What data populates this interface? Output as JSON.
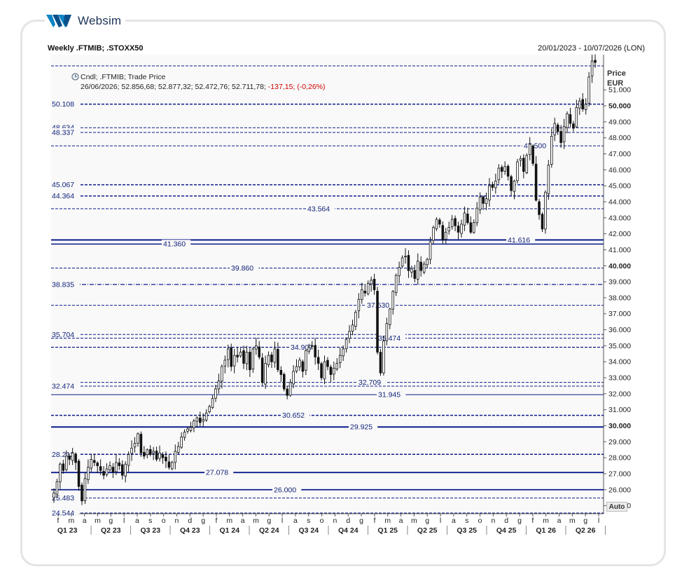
{
  "app": {
    "brand": "Websim"
  },
  "chart_data": {
    "type": "candlestick",
    "title": "Weekly .FTMIB; .STOXX50",
    "date_range": "20/01/2023 - 10/07/2026 (LON)",
    "legend": {
      "series": "Cndl; .FTMIB; Trade Price",
      "ohlc_text": "26/06/2026; 52.856,68; 52.877,32; 52.472,76; 52.711,78;",
      "change_text": "-137,15; (-0,26%)"
    },
    "y_axis": {
      "title": "Price",
      "unit": "EUR",
      "ylim": [
        24500,
        53200
      ],
      "ticks": [
        {
          "v": 25000,
          "label": "25.000",
          "bold": false
        },
        {
          "v": 26000,
          "label": "26.000",
          "bold": false
        },
        {
          "v": 27000,
          "label": "27.000",
          "bold": false
        },
        {
          "v": 28000,
          "label": "28.000",
          "bold": false
        },
        {
          "v": 29000,
          "label": "29.000",
          "bold": false
        },
        {
          "v": 30000,
          "label": "30.000",
          "bold": true
        },
        {
          "v": 31000,
          "label": "31.000",
          "bold": false
        },
        {
          "v": 32000,
          "label": "32.000",
          "bold": false
        },
        {
          "v": 33000,
          "label": "33.000",
          "bold": false
        },
        {
          "v": 34000,
          "label": "34.000",
          "bold": false
        },
        {
          "v": 35000,
          "label": "35.000",
          "bold": false
        },
        {
          "v": 36000,
          "label": "36.000",
          "bold": false
        },
        {
          "v": 37000,
          "label": "37.000",
          "bold": false
        },
        {
          "v": 38000,
          "label": "38.000",
          "bold": false
        },
        {
          "v": 39000,
          "label": "39.000",
          "bold": false
        },
        {
          "v": 40000,
          "label": "40.000",
          "bold": true
        },
        {
          "v": 41000,
          "label": "41.000",
          "bold": false
        },
        {
          "v": 42000,
          "label": "42.000",
          "bold": false
        },
        {
          "v": 43000,
          "label": "43.000",
          "bold": false
        },
        {
          "v": 44000,
          "label": "44.000",
          "bold": false
        },
        {
          "v": 45000,
          "label": "45.000",
          "bold": false
        },
        {
          "v": 46000,
          "label": "46.000",
          "bold": false
        },
        {
          "v": 47000,
          "label": "47.000",
          "bold": false
        },
        {
          "v": 48000,
          "label": "48.000",
          "bold": false
        },
        {
          "v": 49000,
          "label": "49.000",
          "bold": false
        },
        {
          "v": 50000,
          "label": "50.000",
          "bold": true
        },
        {
          "v": 51000,
          "label": "51.000",
          "bold": false
        }
      ],
      "auto_label": "Auto"
    },
    "x_axis": {
      "month_ticks": [
        "f",
        "m",
        "a",
        "m",
        "g",
        "l",
        "a",
        "s",
        "o",
        "n",
        "d",
        "g",
        "f",
        "m",
        "a",
        "m",
        "g",
        "l",
        "a",
        "s",
        "o",
        "n",
        "d",
        "g",
        "f",
        "m",
        "a",
        "m",
        "g",
        "l",
        "a",
        "s",
        "o",
        "n",
        "d",
        "g",
        "f",
        "m",
        "a",
        "m",
        "g",
        "l"
      ],
      "quarters": [
        "Q1 23",
        "Q2 23",
        "Q3 23",
        "Q4 23",
        "Q1 24",
        "Q2 24",
        "Q3 24",
        "Q4 24",
        "Q1 25",
        "Q2 25",
        "Q3 25",
        "Q4 25",
        "Q1 26",
        "Q2 26"
      ]
    },
    "levels": [
      {
        "v": 52500,
        "label": "",
        "style": "dash",
        "weight": 1
      },
      {
        "v": 50108,
        "label": "50.108",
        "style": "dash",
        "weight": 1.5,
        "labelpos": "left"
      },
      {
        "v": 48634,
        "label": "48.634",
        "style": "dash",
        "weight": 1,
        "labelpos": "left"
      },
      {
        "v": 48337,
        "label": "48.337",
        "style": "dash",
        "weight": 1,
        "labelpos": "left"
      },
      {
        "v": 47500,
        "label": "47.500",
        "style": "dash",
        "weight": 1,
        "labelpos": "right"
      },
      {
        "v": 45067,
        "label": "45.067",
        "style": "dash",
        "weight": 1.5,
        "labelpos": "left"
      },
      {
        "v": 44364,
        "label": "44.364",
        "style": "dash",
        "weight": 1.5,
        "labelpos": "left"
      },
      {
        "v": 43564,
        "label": "43.564",
        "style": "dash",
        "weight": 1,
        "labelpos": "mid"
      },
      {
        "v": 41616,
        "label": "41.616",
        "style": "solid",
        "weight": 2,
        "labelpos": "right"
      },
      {
        "v": 41360,
        "label": "41.360",
        "style": "solid",
        "weight": 1.5,
        "labelpos": "mid"
      },
      {
        "v": 39860,
        "label": "39.860",
        "style": "dash",
        "weight": 1,
        "labelpos": "mid"
      },
      {
        "v": 38835,
        "label": "38.835",
        "style": "dashdot",
        "weight": 1.2,
        "labelpos": "left"
      },
      {
        "v": 37530,
        "label": "37.530",
        "style": "dash",
        "weight": 1,
        "labelpos": "mid"
      },
      {
        "v": 35704,
        "label": "35.704",
        "style": "dash",
        "weight": 1,
        "labelpos": "left"
      },
      {
        "v": 35474,
        "label": "35.474",
        "style": "dash",
        "weight": 1,
        "labelpos": "mid2"
      },
      {
        "v": 34907,
        "label": "34.907",
        "style": "dash",
        "weight": 1.2,
        "labelpos": "mid"
      },
      {
        "v": 32709,
        "label": "32.709",
        "style": "dash",
        "weight": 1,
        "labelpos": "mid"
      },
      {
        "v": 32474,
        "label": "32.474",
        "style": "dash",
        "weight": 1,
        "labelpos": "left"
      },
      {
        "v": 31945,
        "label": "31.945",
        "style": "solid",
        "weight": 1,
        "labelpos": "mid2"
      },
      {
        "v": 30652,
        "label": "30.652",
        "style": "dash",
        "weight": 1.5,
        "labelpos": "mid"
      },
      {
        "v": 29925,
        "label": "29.925",
        "style": "solid",
        "weight": 2,
        "labelpos": "mid"
      },
      {
        "v": 28212,
        "label": "28.212",
        "style": "dash",
        "weight": 1.5,
        "labelpos": "left"
      },
      {
        "v": 27078,
        "label": "27.078",
        "style": "solid",
        "weight": 1.8,
        "labelpos": "mid"
      },
      {
        "v": 26000,
        "label": "26.000",
        "style": "solid",
        "weight": 1.8,
        "labelpos": "mid"
      },
      {
        "v": 25483,
        "label": "25.483",
        "style": "dash",
        "weight": 1,
        "labelpos": "left"
      },
      {
        "v": 24544,
        "label": "24.544",
        "style": "dash",
        "weight": 1,
        "labelpos": "left"
      }
    ],
    "closes": [
      25800,
      26500,
      27600,
      27200,
      28100,
      27900,
      28300,
      27700,
      26200,
      25300,
      26700,
      27400,
      27900,
      27700,
      27500,
      27200,
      26900,
      27300,
      27500,
      27100,
      27700,
      27500,
      26900,
      27600,
      28200,
      28600,
      28900,
      29500,
      28300,
      28100,
      28500,
      28200,
      28400,
      27900,
      28300,
      28000,
      27800,
      27400,
      27700,
      28400,
      28700,
      29300,
      29600,
      29800,
      29900,
      30300,
      30500,
      30200,
      30400,
      30800,
      31200,
      31700,
      32300,
      32800,
      33700,
      34100,
      34800,
      33700,
      34400,
      34300,
      34600,
      33900,
      34600,
      33500,
      34800,
      35000,
      34300,
      32700,
      33900,
      34400,
      34000,
      34800,
      33500,
      33200,
      32300,
      31900,
      32700,
      33400,
      33700,
      34100,
      33400,
      34700,
      34900,
      35000,
      34300,
      33900,
      33000,
      34000,
      33700,
      33200,
      33600,
      33900,
      34400,
      34800,
      35400,
      35900,
      36300,
      37100,
      37900,
      38500,
      38300,
      38900,
      39100,
      38500,
      34600,
      33300,
      35300,
      36400,
      37300,
      38400,
      39400,
      39900,
      40500,
      40600,
      39700,
      39800,
      39200,
      40300,
      39700,
      40100,
      40400,
      41500,
      42400,
      42900,
      42600,
      41600,
      42100,
      42400,
      42900,
      42500,
      42100,
      42600,
      43300,
      42700,
      42100,
      42700,
      43600,
      44300,
      43900,
      44200,
      45000,
      44900,
      45300,
      46100,
      45900,
      46200,
      45600,
      44700,
      45300,
      46500,
      46700,
      45900,
      46900,
      47600,
      46400,
      44100,
      43200,
      42300,
      44600,
      46300,
      48100,
      48900,
      48400,
      47700,
      48700,
      49500,
      48900,
      48600,
      49900,
      50300,
      49800,
      50100,
      51800,
      52800,
      52712
    ]
  }
}
